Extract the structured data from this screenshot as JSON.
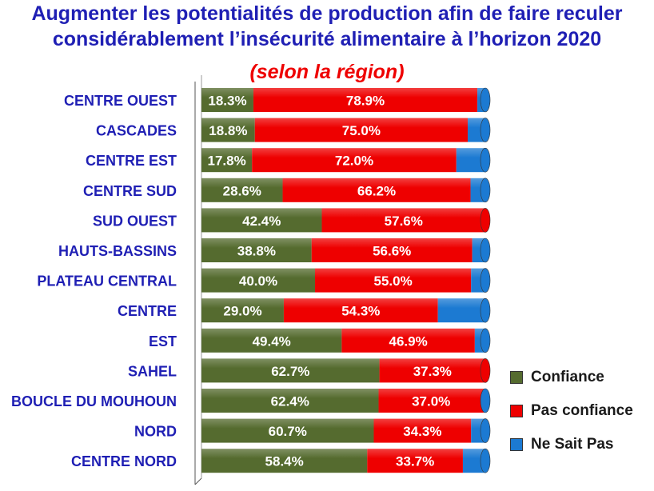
{
  "title_line1": "Augmenter les potentialités de production afin de  faire reculer",
  "title_line2": "considérablement l’insécurité alimentaire à l’horizon 2020",
  "subtitle": "(selon la région)",
  "chart_data": {
    "type": "bar",
    "orientation": "horizontal",
    "stacked": true,
    "percent_stacked": true,
    "categories": [
      "CENTRE OUEST",
      "CASCADES",
      "CENTRE EST",
      "CENTRE SUD",
      "SUD OUEST",
      "HAUTS-BASSINS",
      "PLATEAU CENTRAL",
      "CENTRE",
      "EST",
      "SAHEL",
      "BOUCLE DU MOUHOUN",
      "NORD",
      "CENTRE NORD"
    ],
    "series": [
      {
        "name": "Confiance",
        "color": "#556b2f",
        "values": [
          18.3,
          18.8,
          17.8,
          28.6,
          42.4,
          38.8,
          40.0,
          29.0,
          49.4,
          62.7,
          62.4,
          60.7,
          58.4
        ]
      },
      {
        "name": "Pas confiance",
        "color": "#ee0000",
        "values": [
          78.9,
          75.0,
          72.0,
          66.2,
          57.6,
          56.6,
          55.0,
          54.3,
          46.9,
          37.3,
          37.0,
          34.3,
          33.7
        ]
      },
      {
        "name": "Ne Sait Pas",
        "color": "#1c7ad2",
        "values": [
          2.8,
          6.2,
          10.2,
          5.2,
          0.0,
          4.6,
          5.0,
          16.7,
          3.7,
          0.0,
          0.6,
          5.0,
          7.9
        ]
      }
    ],
    "labels": {
      "Confiance": [
        "18.3%",
        "18.8%",
        "17.8%",
        "28.6%",
        "42.4%",
        "38.8%",
        "40.0%",
        "29.0%",
        "49.4%",
        "62.7%",
        "62.4%",
        "60.7%",
        "58.4%"
      ],
      "Pas confiance": [
        "78.9%",
        "75.0%",
        "72.0%",
        "66.2%",
        "57.6%",
        "56.6%",
        "55.0%",
        "54.3%",
        "46.9%",
        "37.3%",
        "37.0%",
        "34.3%",
        "33.7%"
      ]
    },
    "xlim": [
      0,
      100
    ],
    "legend_position": "right"
  }
}
